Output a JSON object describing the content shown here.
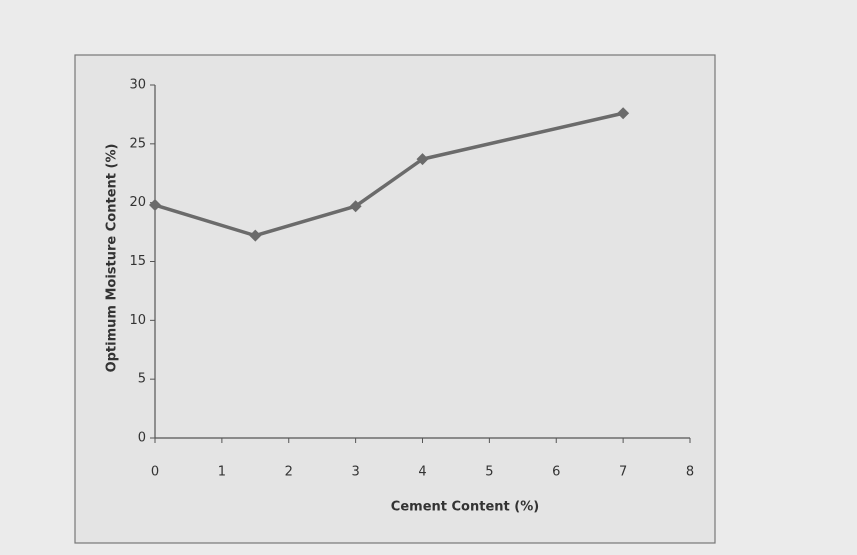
{
  "chart_data": {
    "type": "line",
    "xlabel": "Cement Content (%)",
    "ylabel": "Optimum Moisture Content (%)",
    "x": [
      0,
      1.5,
      3,
      4,
      7
    ],
    "series": [
      {
        "name": "Optimum Moisture Content",
        "color": "#6b6b6b",
        "values": [
          19.8,
          17.2,
          19.7,
          23.7,
          27.6
        ]
      }
    ],
    "xlim": [
      0,
      8
    ],
    "xticks": [
      0,
      1,
      2,
      3,
      4,
      5,
      6,
      7,
      8
    ],
    "ylim": [
      0,
      30
    ],
    "yticks": [
      0,
      5,
      10,
      15,
      20,
      25,
      30
    ],
    "grid": false,
    "legend": false
  }
}
